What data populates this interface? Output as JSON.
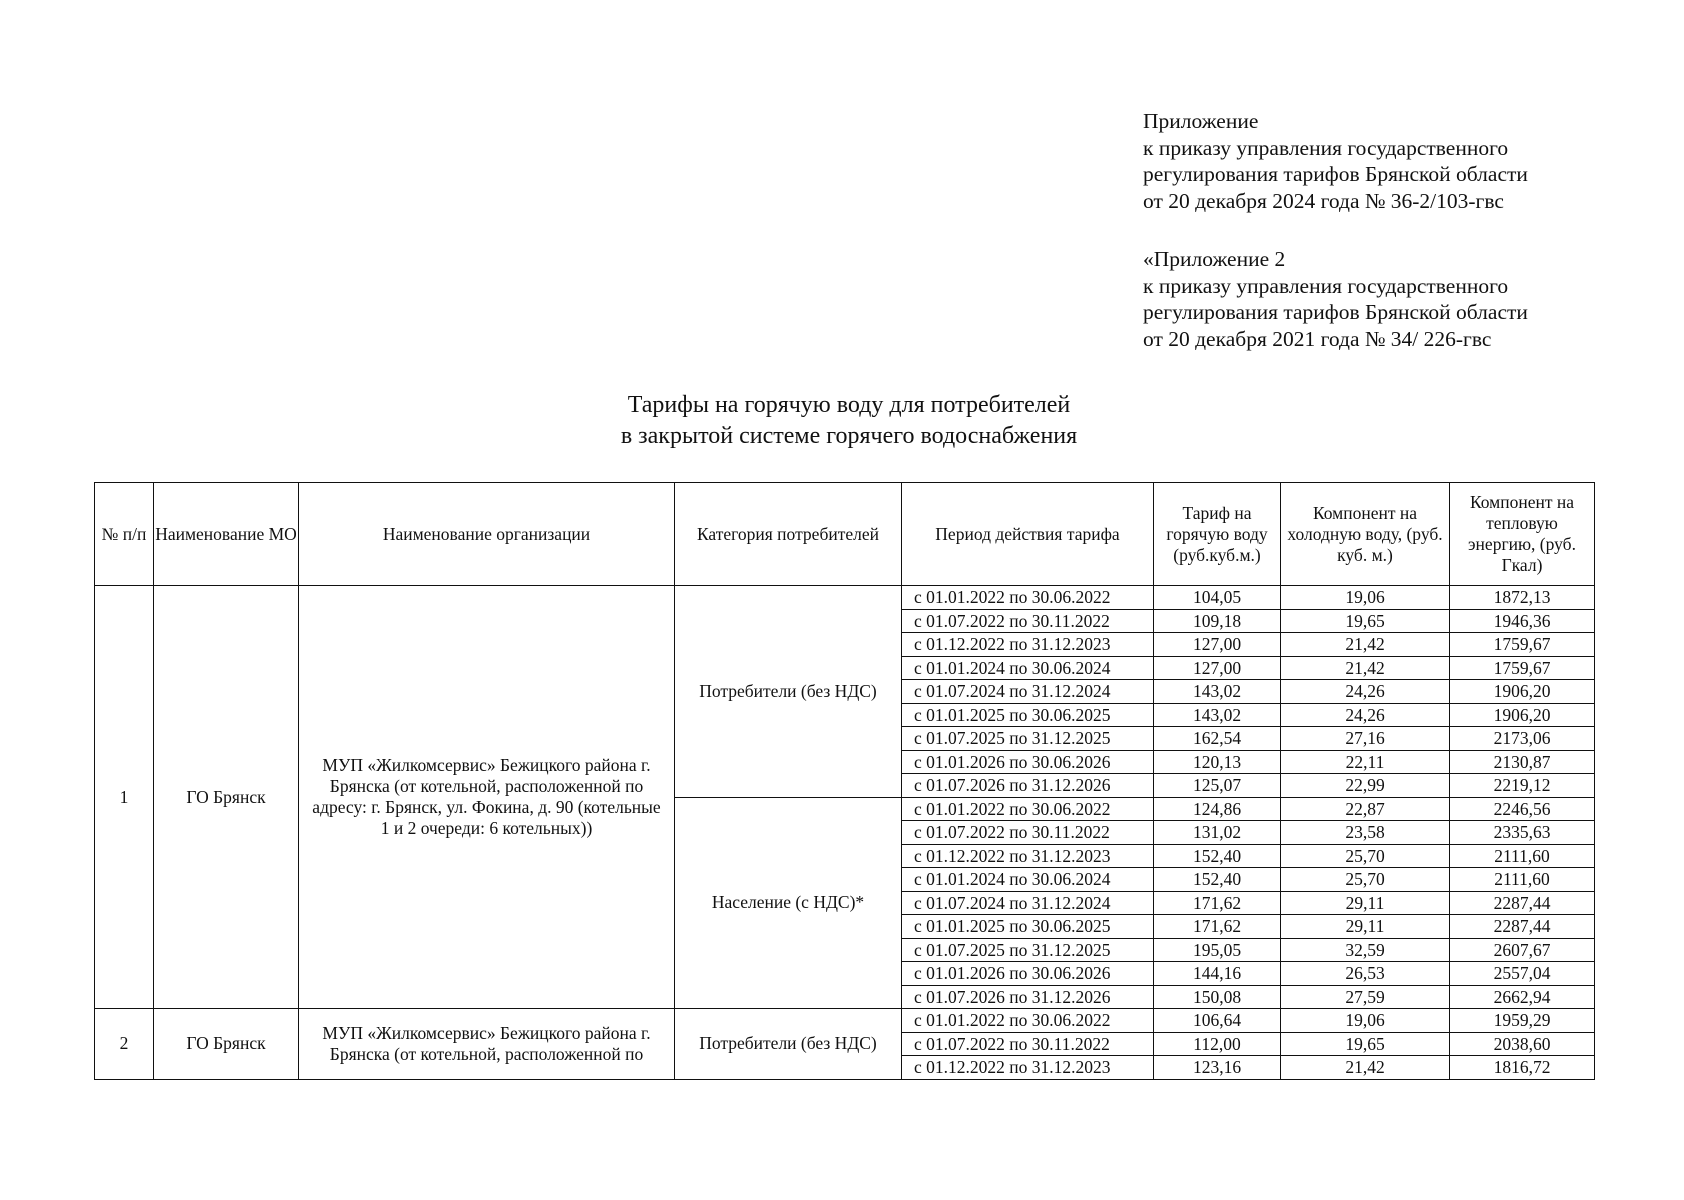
{
  "header_note_1": [
    "Приложение",
    "к приказу управления государственного",
    "регулирования тарифов Брянской области",
    "от 20 декабря 2024 года № 36-2/103-гвс"
  ],
  "header_note_2": [
    "«Приложение 2",
    "к приказу управления государственного",
    "регулирования тарифов Брянской области",
    "от 20 декабря 2021 года № 34/ 226-гвс"
  ],
  "title": [
    "Тарифы на горячую воду для потребителей",
    "в закрытой системе горячего водоснабжения"
  ],
  "table": {
    "columns": [
      "№ п/п",
      "Наименование МО",
      "Наименование организации",
      "Категория потребителей",
      "Период действия тарифа",
      "Тариф на горячую воду (руб.куб.м.)",
      "Компонент на холодную воду, (руб. куб. м.)",
      "Компонент на тепловую энергию, (руб. Гкал)"
    ],
    "groups": [
      {
        "num": "1",
        "mo": "ГО Брянск",
        "org": "МУП «Жилкомсервис» Бежицкого района г. Брянска (от котельной, расположенной по адресу: г. Брянск, ул. Фокина, д. 90 (котельные 1 и 2 очереди: 6 котельных))",
        "categories": [
          {
            "name": "Потребители (без НДС)",
            "rows": [
              [
                "с 01.01.2022 по 30.06.2022",
                "104,05",
                "19,06",
                "1872,13"
              ],
              [
                "с 01.07.2022 по 30.11.2022",
                "109,18",
                "19,65",
                "1946,36"
              ],
              [
                "с 01.12.2022 по 31.12.2023",
                "127,00",
                "21,42",
                "1759,67"
              ],
              [
                "с 01.01.2024 по 30.06.2024",
                "127,00",
                "21,42",
                "1759,67"
              ],
              [
                "с 01.07.2024 по 31.12.2024",
                "143,02",
                "24,26",
                "1906,20"
              ],
              [
                "с 01.01.2025 по 30.06.2025",
                "143,02",
                "24,26",
                "1906,20"
              ],
              [
                "с 01.07.2025 по 31.12.2025",
                "162,54",
                "27,16",
                "2173,06"
              ],
              [
                "с 01.01.2026 по 30.06.2026",
                "120,13",
                "22,11",
                "2130,87"
              ],
              [
                "с 01.07.2026 по 31.12.2026",
                "125,07",
                "22,99",
                "2219,12"
              ]
            ]
          },
          {
            "name": "Население (с НДС)*",
            "rows": [
              [
                "с 01.01.2022 по 30.06.2022",
                "124,86",
                "22,87",
                "2246,56"
              ],
              [
                "с 01.07.2022 по 30.11.2022",
                "131,02",
                "23,58",
                "2335,63"
              ],
              [
                "с 01.12.2022 по 31.12.2023",
                "152,40",
                "25,70",
                "2111,60"
              ],
              [
                "с 01.01.2024 по 30.06.2024",
                "152,40",
                "25,70",
                "2111,60"
              ],
              [
                "с 01.07.2024 по 31.12.2024",
                "171,62",
                "29,11",
                "2287,44"
              ],
              [
                "с 01.01.2025 по 30.06.2025",
                "171,62",
                "29,11",
                "2287,44"
              ],
              [
                "с 01.07.2025 по 31.12.2025",
                "195,05",
                "32,59",
                "2607,67"
              ],
              [
                "с 01.01.2026 по 30.06.2026",
                "144,16",
                "26,53",
                "2557,04"
              ],
              [
                "с 01.07.2026 по 31.12.2026",
                "150,08",
                "27,59",
                "2662,94"
              ]
            ]
          }
        ]
      },
      {
        "num": "2",
        "mo": "ГО Брянск",
        "org": "МУП «Жилкомсервис» Бежицкого района г. Брянска (от котельной, расположенной по",
        "categories": [
          {
            "name": "Потребители (без НДС)",
            "rows": [
              [
                "с 01.01.2022 по 30.06.2022",
                "106,64",
                "19,06",
                "1959,29"
              ],
              [
                "с 01.07.2022 по 30.11.2022",
                "112,00",
                "19,65",
                "2038,60"
              ],
              [
                "с 01.12.2022 по 31.12.2023",
                "123,16",
                "21,42",
                "1816,72"
              ]
            ]
          }
        ]
      }
    ]
  }
}
